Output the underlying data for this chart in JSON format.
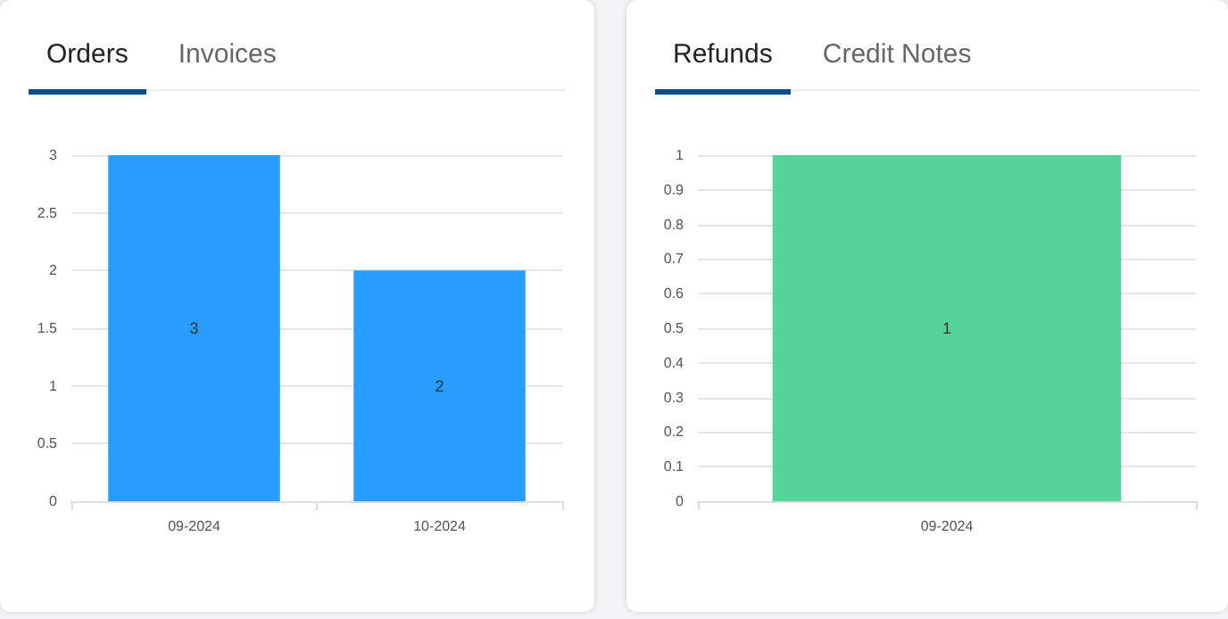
{
  "chart_data": [
    {
      "type": "bar",
      "title": "Orders",
      "annotations": [
        "Invoices"
      ],
      "categories": [
        "09-2024",
        "10-2024"
      ],
      "values": [
        3,
        2
      ],
      "color": "#299cff",
      "ylim": [
        0,
        3
      ],
      "yticks": [
        0,
        0.5,
        1,
        1.5,
        2,
        2.5,
        3
      ],
      "grid": "y",
      "data_labels": true
    },
    {
      "type": "bar",
      "title": "Refunds",
      "annotations": [
        "Credit Notes"
      ],
      "categories": [
        "09-2024"
      ],
      "values": [
        1
      ],
      "color": "#55d49a",
      "ylim": [
        0,
        1
      ],
      "yticks": [
        0,
        0.1,
        0.2,
        0.3,
        0.4,
        0.5,
        0.6,
        0.7,
        0.8,
        0.9,
        1
      ],
      "grid": "y",
      "data_labels": true
    }
  ]
}
